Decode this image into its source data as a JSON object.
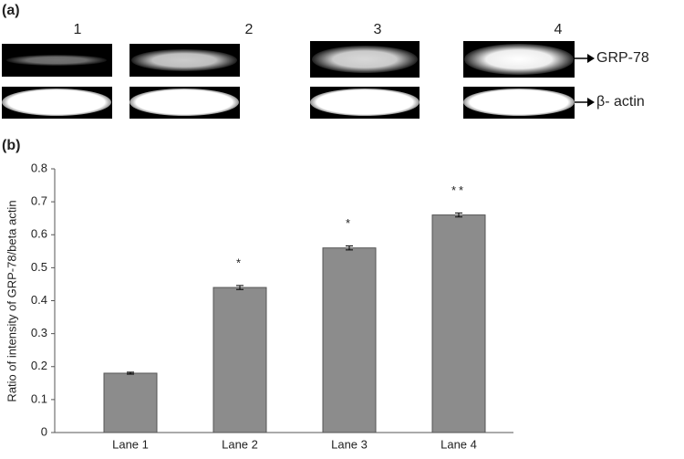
{
  "panels": {
    "a": "(a)",
    "b": "(b)"
  },
  "blot": {
    "lanes": [
      "1",
      "2",
      "3",
      "4"
    ],
    "bands": [
      "GRP-78",
      "β- actin"
    ]
  },
  "chart_data": {
    "type": "bar",
    "y_label": "Ratio of intensity of GRP-78/beta actin",
    "categories": [
      "Lane 1",
      "Lane 2",
      "Lane 3",
      "Lane 4"
    ],
    "values": [
      0.18,
      0.44,
      0.56,
      0.66
    ],
    "errors": [
      0.003,
      0.006,
      0.006,
      0.006
    ],
    "significance": [
      null,
      "*",
      "*",
      "**"
    ],
    "color": "#8c8c8c",
    "ylim": [
      0,
      0.8
    ],
    "yticks": [
      0,
      0.1,
      0.2,
      0.3,
      0.4,
      0.5,
      0.6,
      0.7,
      0.8
    ],
    "grid": false
  }
}
